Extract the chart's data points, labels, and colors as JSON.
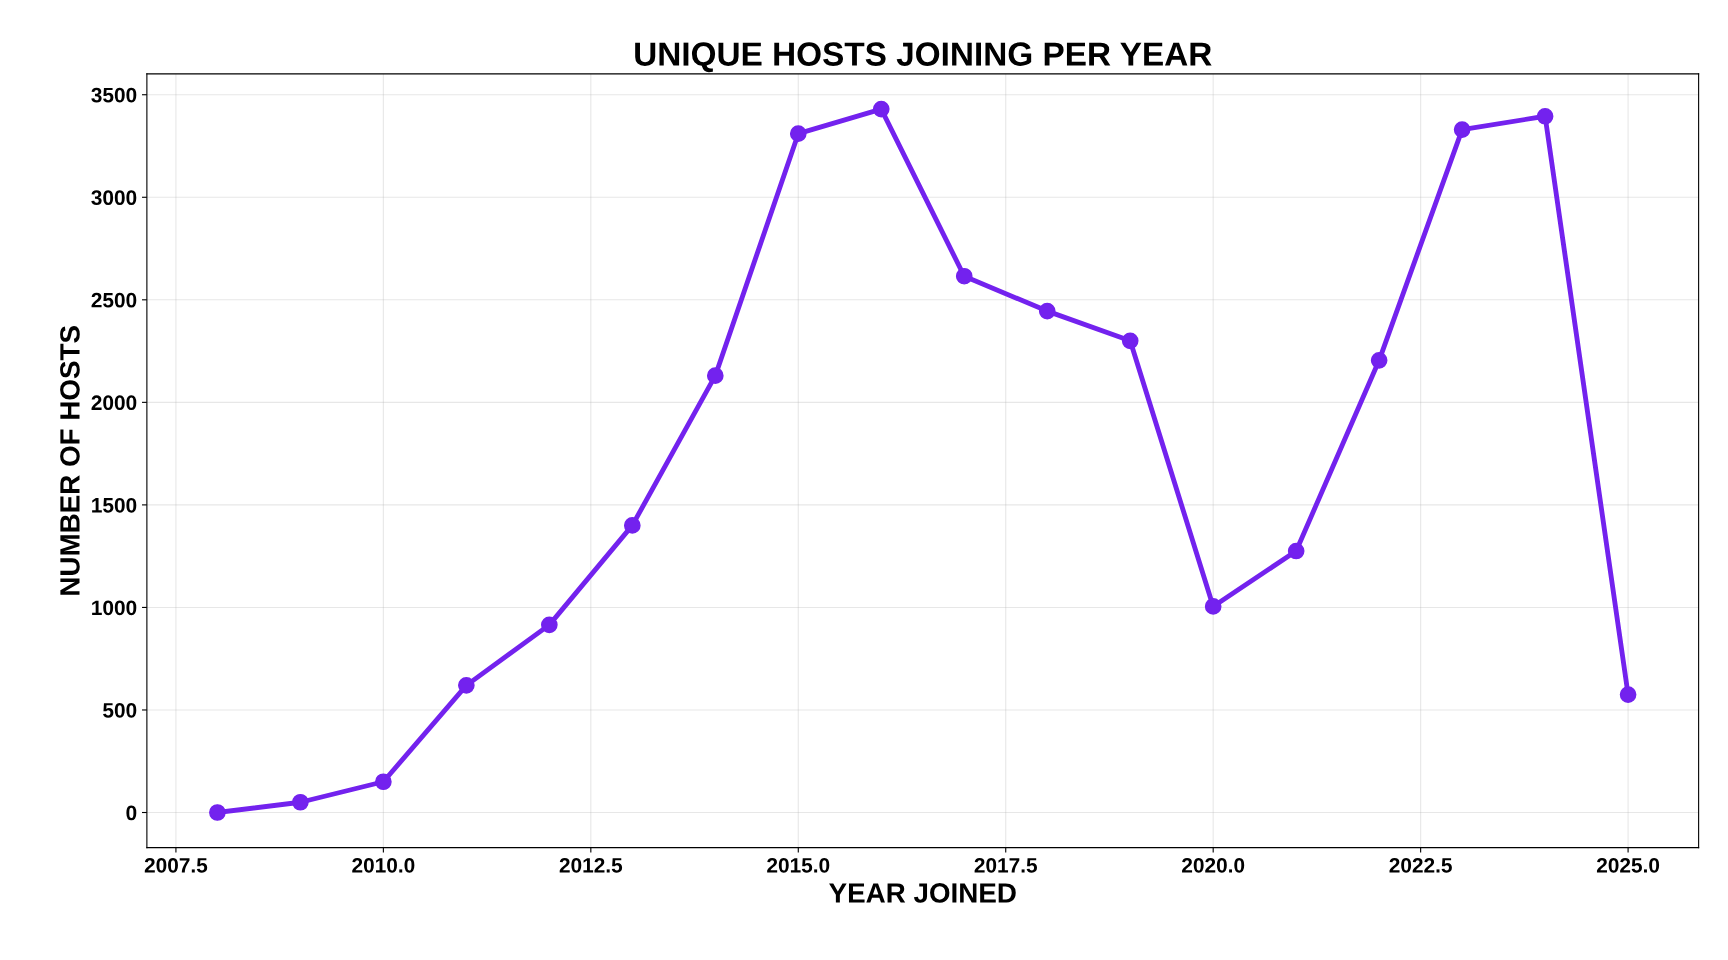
{
  "chart_data": {
    "type": "line",
    "title": "UNIQUE HOSTS JOINING PER YEAR",
    "xlabel": "YEAR JOINED",
    "ylabel": "NUMBER OF HOSTS",
    "x": [
      2008,
      2009,
      2010,
      2011,
      2012,
      2013,
      2014,
      2015,
      2016,
      2017,
      2018,
      2019,
      2020,
      2021,
      2022,
      2023,
      2024,
      2025
    ],
    "series": [
      {
        "color": "#7322ee",
        "values": [
          0,
          50,
          150,
          620,
          915,
          1400,
          2130,
          3310,
          3430,
          2615,
          2445,
          2300,
          1005,
          1275,
          2205,
          3330,
          3395,
          575
        ]
      }
    ],
    "xlim": [
      2007.15,
      2025.85
    ],
    "ylim": [
      -171.5,
      3601.5
    ],
    "xticks": [
      {
        "value": 2007.5,
        "label": "2007.5"
      },
      {
        "value": 2010,
        "label": "2010.0"
      },
      {
        "value": 2012.5,
        "label": "2012.5"
      },
      {
        "value": 2015,
        "label": "2015.0"
      },
      {
        "value": 2017.5,
        "label": "2017.5"
      },
      {
        "value": 2020,
        "label": "2020.0"
      },
      {
        "value": 2022.5,
        "label": "2022.5"
      },
      {
        "value": 2025,
        "label": "2025.0"
      }
    ],
    "yticks": [
      0,
      500,
      1000,
      1500,
      2000,
      2500,
      3000,
      3500
    ],
    "grid": true,
    "marker": "circle",
    "line_style": "solid"
  }
}
